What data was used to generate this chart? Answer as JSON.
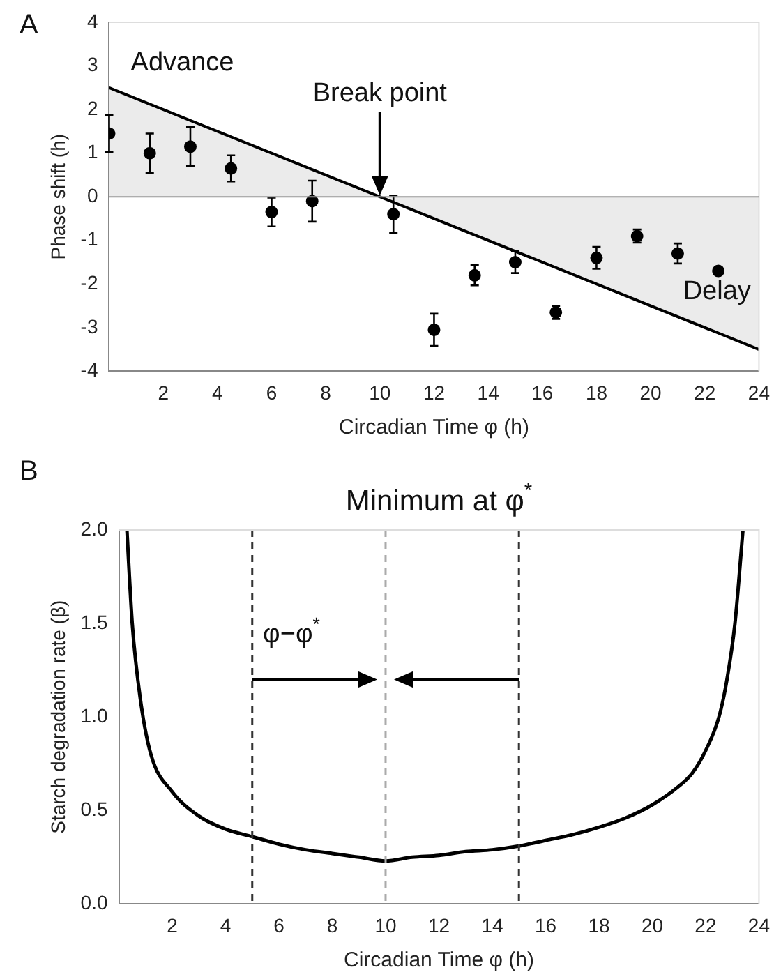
{
  "chart_data": [
    {
      "type": "scatter",
      "xlabel": "Circadian Time φ (h)",
      "ylabel": "Phase shift (h)",
      "xlim": [
        0,
        24
      ],
      "xticks": [
        {
          "value": 0,
          "label": null
        },
        2,
        4,
        6,
        8,
        10,
        12,
        14,
        16,
        18,
        20,
        22,
        24
      ],
      "ylim": [
        -4,
        4
      ],
      "yticks": [
        -4,
        -3,
        -2,
        -1,
        0,
        1,
        2,
        3,
        4
      ],
      "annotations": [
        "A",
        "Advance",
        "Break point",
        "Delay"
      ],
      "series": [
        {
          "marker": "circle",
          "color": "#000000",
          "x": [
            0,
            1.5,
            3,
            4.5,
            6,
            7.5,
            10.5,
            12,
            13.5,
            15,
            16.5,
            18,
            19.5,
            21,
            22.5
          ],
          "values": [
            1.45,
            1.0,
            1.15,
            0.65,
            -0.35,
            -0.1,
            -0.4,
            -3.05,
            -1.8,
            -1.5,
            -2.65,
            -1.4,
            -0.9,
            -1.3,
            -1.7
          ],
          "errors": [
            0.43,
            0.45,
            0.45,
            0.3,
            0.33,
            0.47,
            0.43,
            0.37,
            0.23,
            0.25,
            0.15,
            0.25,
            0.15,
            0.23,
            null
          ]
        },
        {
          "type": "area",
          "color": "#000000",
          "x": [
            0,
            24
          ],
          "values": [
            2.5,
            -3.5
          ]
        }
      ]
    },
    {
      "type": "line",
      "title": "Minimum at φ$^{*}$",
      "xlabel": "Circadian Time φ (h)",
      "ylabel": "Starch degradation rate (β)",
      "xlim": [
        0,
        24
      ],
      "xticks": [
        {
          "value": 0,
          "label": null
        },
        2,
        4,
        6,
        8,
        10,
        12,
        14,
        16,
        18,
        20,
        22,
        24
      ],
      "ylim": [
        0,
        2
      ],
      "yticks": [
        {
          "value": 0,
          "label": "0.0"
        },
        {
          "value": 0.5,
          "label": "0.5"
        },
        {
          "value": 1,
          "label": "1.0"
        },
        {
          "value": 1.5,
          "label": "1.5"
        },
        {
          "value": 2,
          "label": "2.0"
        }
      ],
      "annotations": [
        "B",
        "φ−φ$^{*}$"
      ],
      "ref_lines": [
        {
          "axis": "x",
          "value": 5,
          "color": "#333333",
          "line_style": "dashed"
        },
        {
          "axis": "x",
          "value": 10,
          "color": "#aaaaaa",
          "line_style": "dashed"
        },
        {
          "axis": "x",
          "value": 15,
          "color": "#333333",
          "line_style": "dashed"
        }
      ],
      "series": [
        {
          "color": "#000000",
          "x": [
            0.3,
            0.5,
            0.8,
            1.2,
            2,
            3,
            4,
            5,
            6,
            7,
            8,
            9,
            10,
            11,
            12,
            13,
            14,
            15,
            16,
            17,
            18,
            19,
            20,
            21,
            21.5,
            22,
            22.5,
            22.8,
            23.1,
            23.4
          ],
          "values": [
            2.0,
            1.5,
            1.1,
            0.8,
            0.6,
            0.47,
            0.4,
            0.36,
            0.32,
            0.29,
            0.27,
            0.25,
            0.23,
            0.25,
            0.26,
            0.28,
            0.29,
            0.31,
            0.34,
            0.37,
            0.41,
            0.46,
            0.53,
            0.63,
            0.7,
            0.82,
            1.0,
            1.2,
            1.5,
            2.0
          ]
        }
      ]
    }
  ]
}
